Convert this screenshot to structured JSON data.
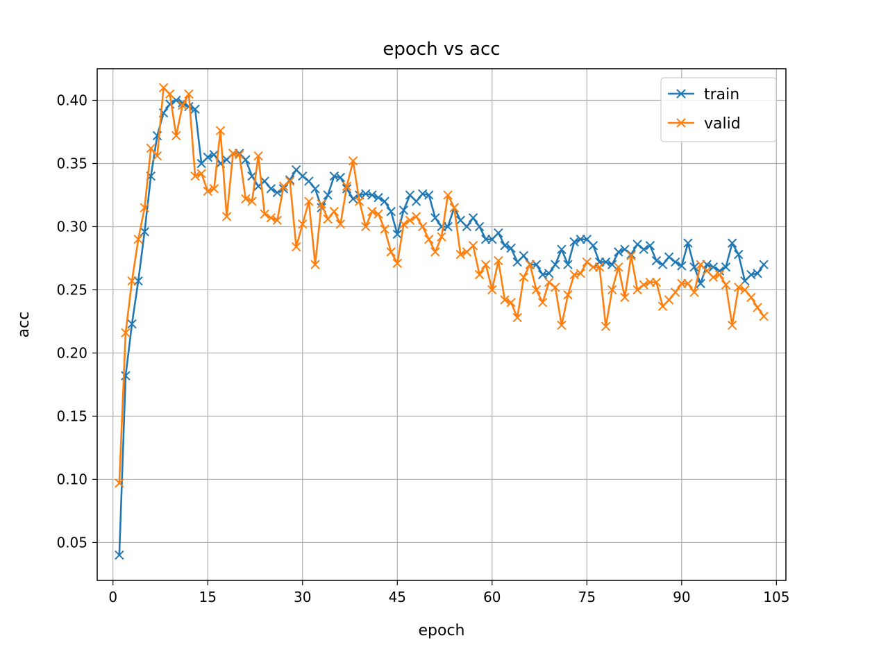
{
  "chart_data": {
    "type": "line",
    "title": "epoch vs acc",
    "xlabel": "epoch",
    "ylabel": "acc",
    "xlim": [
      -2.5,
      106.5
    ],
    "ylim": [
      0.02,
      0.425
    ],
    "xticks": [
      0,
      15,
      30,
      45,
      60,
      75,
      90,
      105
    ],
    "yticks": [
      0.05,
      0.1,
      0.15,
      0.2,
      0.25,
      0.3,
      0.35,
      0.4
    ],
    "ytick_labels": [
      "0.05",
      "0.10",
      "0.15",
      "0.20",
      "0.25",
      "0.30",
      "0.35",
      "0.40"
    ],
    "grid": true,
    "legend_position": "top-right",
    "marker": "x",
    "x": [
      1,
      2,
      3,
      4,
      5,
      6,
      7,
      8,
      9,
      10,
      11,
      12,
      13,
      14,
      15,
      16,
      17,
      18,
      19,
      20,
      21,
      22,
      23,
      24,
      25,
      26,
      27,
      28,
      29,
      30,
      31,
      32,
      33,
      34,
      35,
      36,
      37,
      38,
      39,
      40,
      41,
      42,
      43,
      44,
      45,
      46,
      47,
      48,
      49,
      50,
      51,
      52,
      53,
      54,
      55,
      56,
      57,
      58,
      59,
      60,
      61,
      62,
      63,
      64,
      65,
      66,
      67,
      68,
      69,
      70,
      71,
      72,
      73,
      74,
      75,
      76,
      77,
      78,
      79,
      80,
      81,
      82,
      83,
      84,
      85,
      86,
      87,
      88,
      89,
      90,
      91,
      92,
      93,
      94,
      95,
      96,
      97,
      98,
      99,
      100,
      101,
      102,
      103
    ],
    "series": [
      {
        "name": "train",
        "color": "#1f77b4",
        "values": [
          0.04,
          0.182,
          0.223,
          0.257,
          0.296,
          0.34,
          0.372,
          0.39,
          0.397,
          0.4,
          0.398,
          0.395,
          0.393,
          0.35,
          0.355,
          0.357,
          0.35,
          0.353,
          0.358,
          0.358,
          0.353,
          0.34,
          0.332,
          0.336,
          0.33,
          0.327,
          0.33,
          0.337,
          0.345,
          0.34,
          0.336,
          0.33,
          0.315,
          0.325,
          0.34,
          0.339,
          0.33,
          0.322,
          0.325,
          0.326,
          0.325,
          0.323,
          0.32,
          0.312,
          0.294,
          0.313,
          0.325,
          0.32,
          0.326,
          0.325,
          0.307,
          0.3,
          0.3,
          0.315,
          0.305,
          0.3,
          0.307,
          0.3,
          0.29,
          0.29,
          0.295,
          0.285,
          0.283,
          0.272,
          0.277,
          0.27,
          0.27,
          0.262,
          0.263,
          0.27,
          0.282,
          0.27,
          0.288,
          0.29,
          0.29,
          0.285,
          0.272,
          0.272,
          0.27,
          0.28,
          0.282,
          0.278,
          0.286,
          0.282,
          0.285,
          0.273,
          0.27,
          0.276,
          0.272,
          0.269,
          0.287,
          0.268,
          0.255,
          0.27,
          0.268,
          0.265,
          0.268,
          0.287,
          0.278,
          0.257,
          0.262,
          0.263,
          0.27
        ]
      },
      {
        "name": "valid",
        "color": "#ff7f0e",
        "values": [
          0.097,
          0.216,
          0.257,
          0.29,
          0.315,
          0.362,
          0.356,
          0.41,
          0.405,
          0.372,
          0.396,
          0.405,
          0.34,
          0.342,
          0.328,
          0.33,
          0.376,
          0.308,
          0.358,
          0.357,
          0.322,
          0.32,
          0.356,
          0.31,
          0.307,
          0.305,
          0.332,
          0.336,
          0.284,
          0.302,
          0.32,
          0.27,
          0.318,
          0.306,
          0.312,
          0.302,
          0.332,
          0.352,
          0.32,
          0.3,
          0.312,
          0.31,
          0.298,
          0.28,
          0.271,
          0.302,
          0.305,
          0.308,
          0.3,
          0.29,
          0.28,
          0.292,
          0.325,
          0.315,
          0.278,
          0.28,
          0.285,
          0.262,
          0.27,
          0.25,
          0.273,
          0.242,
          0.24,
          0.228,
          0.26,
          0.27,
          0.25,
          0.24,
          0.256,
          0.252,
          0.222,
          0.246,
          0.262,
          0.263,
          0.272,
          0.268,
          0.268,
          0.221,
          0.25,
          0.268,
          0.244,
          0.277,
          0.25,
          0.254,
          0.256,
          0.256,
          0.237,
          0.242,
          0.248,
          0.255,
          0.255,
          0.248,
          0.27,
          0.265,
          0.26,
          0.262,
          0.254,
          0.222,
          0.252,
          0.25,
          0.244,
          0.236,
          0.229
        ]
      }
    ]
  }
}
